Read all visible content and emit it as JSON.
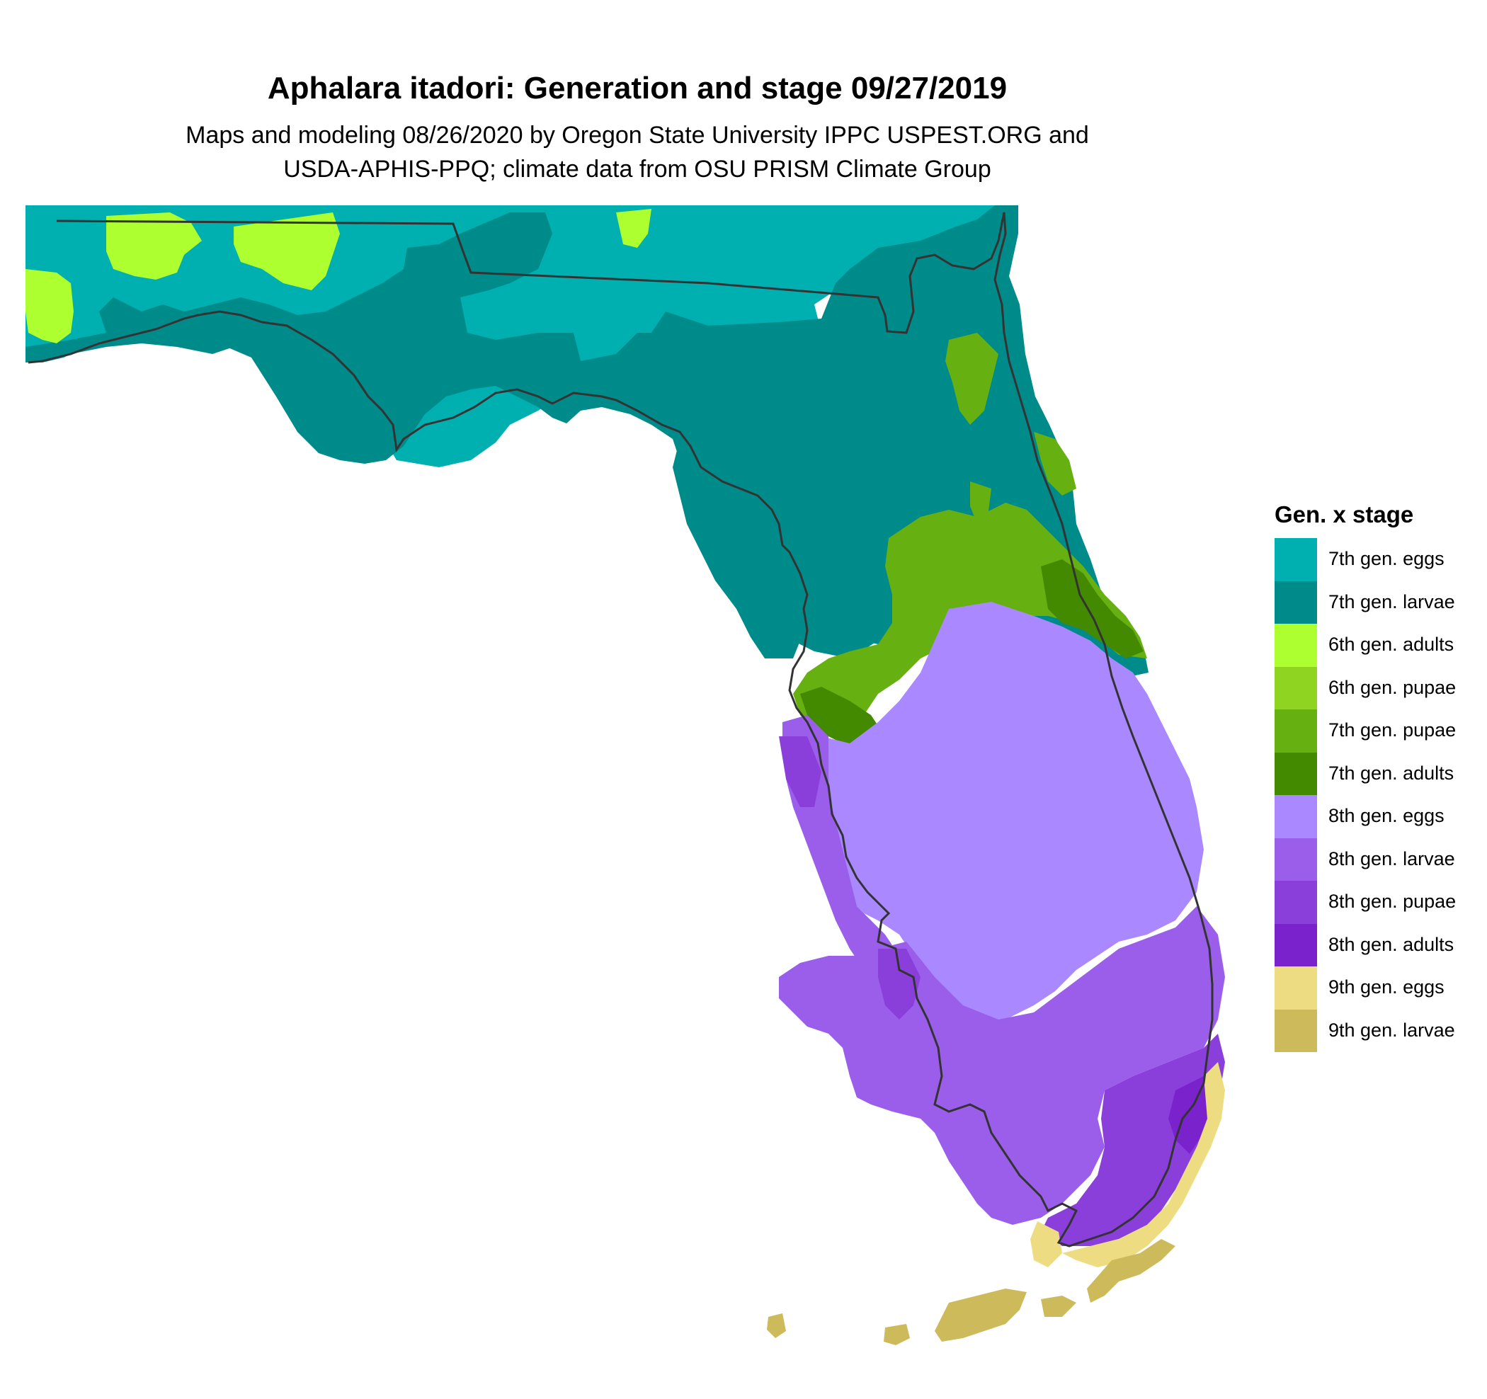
{
  "title": "Aphalara itadori: Generation and stage 09/27/2019",
  "subtitle_lines": [
    "Maps and modeling 08/26/2020 by Oregon State University IPPC USPEST.ORG and",
    "USDA-APHIS-PPQ; climate data from OSU PRISM Climate Group"
  ],
  "legend": {
    "title": "Gen. x stage",
    "items": [
      {
        "label": "7th gen. eggs",
        "color": "#00AFAF"
      },
      {
        "label": "7th gen. larvae",
        "color": "#008B8B"
      },
      {
        "label": "6th gen. adults",
        "color": "#ADFF2F"
      },
      {
        "label": "6th gen. pupae",
        "color": "#8FD421"
      },
      {
        "label": "7th gen. pupae",
        "color": "#67B011"
      },
      {
        "label": "7th gen. adults",
        "color": "#448A00"
      },
      {
        "label": "8th gen. eggs",
        "color": "#AA88FF"
      },
      {
        "label": "8th gen. larvae",
        "color": "#9A5EEA"
      },
      {
        "label": "8th gen. pupae",
        "color": "#8A3FDB"
      },
      {
        "label": "8th gen. adults",
        "color": "#7A22CC"
      },
      {
        "label": "9th gen. eggs",
        "color": "#EEDC82"
      },
      {
        "label": "9th gen. larvae",
        "color": "#CDBA5A"
      }
    ]
  }
}
